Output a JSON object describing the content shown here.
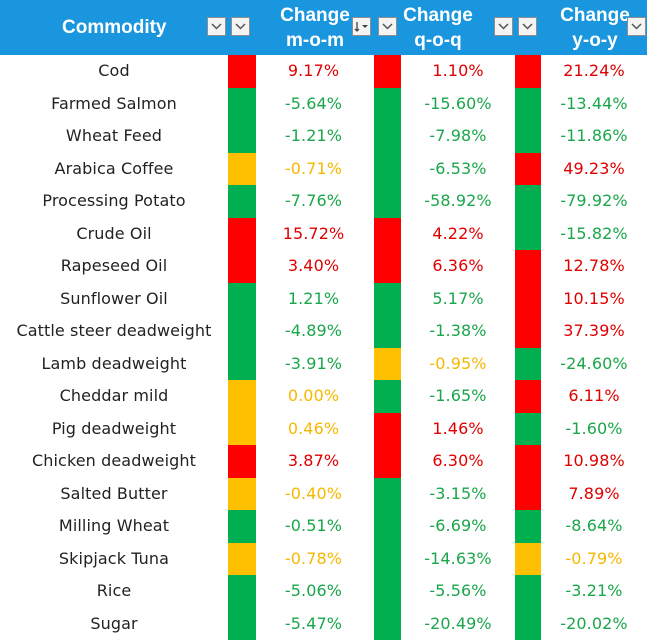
{
  "colors": {
    "header_bg": "#1a96df",
    "header_text": "#ffffff",
    "red": "#fe0000",
    "green": "#00b050",
    "amber": "#fec000",
    "red_text": "#e00000",
    "green_text": "#1aa64a",
    "amber_text": "#f5b800",
    "name_text": "#222222"
  },
  "header": {
    "commodity": "Commodity",
    "mom": [
      "Change",
      "m-o-m"
    ],
    "qoq": [
      "Change",
      "q-o-q"
    ],
    "yoy": [
      "Change",
      "y-o-y"
    ]
  },
  "filter_icons": {
    "dropdown": "chevron-down-icon",
    "sorted": "sort-descending-icon"
  },
  "rows": [
    {
      "name": "Cod",
      "mom": "9.17%",
      "mom_status": "red",
      "qoq": "1.10%",
      "qoq_status": "red",
      "yoy": "21.24%",
      "yoy_status": "red"
    },
    {
      "name": "Farmed Salmon",
      "mom": "-5.64%",
      "mom_status": "green",
      "qoq": "-15.60%",
      "qoq_status": "green",
      "yoy": "-13.44%",
      "yoy_status": "green"
    },
    {
      "name": "Wheat Feed",
      "mom": "-1.21%",
      "mom_status": "green",
      "qoq": "-7.98%",
      "qoq_status": "green",
      "yoy": "-11.86%",
      "yoy_status": "green"
    },
    {
      "name": "Arabica Coffee",
      "mom": "-0.71%",
      "mom_status": "amber",
      "qoq": "-6.53%",
      "qoq_status": "green",
      "yoy": "49.23%",
      "yoy_status": "red"
    },
    {
      "name": "Processing Potato",
      "mom": "-7.76%",
      "mom_status": "green",
      "qoq": "-58.92%",
      "qoq_status": "green",
      "yoy": "-79.92%",
      "yoy_status": "green"
    },
    {
      "name": "Crude Oil",
      "mom": "15.72%",
      "mom_status": "red",
      "qoq": "4.22%",
      "qoq_status": "red",
      "yoy": "-15.82%",
      "yoy_status": "green"
    },
    {
      "name": "Rapeseed Oil",
      "mom": "3.40%",
      "mom_status": "red",
      "qoq": "6.36%",
      "qoq_status": "red",
      "yoy": "12.78%",
      "yoy_status": "red"
    },
    {
      "name": "Sunflower Oil",
      "mom": "1.21%",
      "mom_status": "green",
      "qoq": "5.17%",
      "qoq_status": "green",
      "yoy": "10.15%",
      "yoy_status": "red"
    },
    {
      "name": "Cattle steer deadweight",
      "mom": "-4.89%",
      "mom_status": "green",
      "qoq": "-1.38%",
      "qoq_status": "green",
      "yoy": "37.39%",
      "yoy_status": "red"
    },
    {
      "name": "Lamb deadweight",
      "mom": "-3.91%",
      "mom_status": "green",
      "qoq": "-0.95%",
      "qoq_status": "amber",
      "yoy": "-24.60%",
      "yoy_status": "green"
    },
    {
      "name": "Cheddar mild",
      "mom": "0.00%",
      "mom_status": "amber",
      "qoq": "-1.65%",
      "qoq_status": "green",
      "yoy": "6.11%",
      "yoy_status": "red"
    },
    {
      "name": "Pig deadweight",
      "mom": "0.46%",
      "mom_status": "amber",
      "qoq": "1.46%",
      "qoq_status": "red",
      "yoy": "-1.60%",
      "yoy_status": "green"
    },
    {
      "name": "Chicken deadweight",
      "mom": "3.87%",
      "mom_status": "red",
      "qoq": "6.30%",
      "qoq_status": "red",
      "yoy": "10.98%",
      "yoy_status": "red"
    },
    {
      "name": "Salted Butter",
      "mom": "-0.40%",
      "mom_status": "amber",
      "qoq": "-3.15%",
      "qoq_status": "green",
      "yoy": "7.89%",
      "yoy_status": "red"
    },
    {
      "name": "Milling Wheat",
      "mom": "-0.51%",
      "mom_status": "green",
      "qoq": "-6.69%",
      "qoq_status": "green",
      "yoy": "-8.64%",
      "yoy_status": "green"
    },
    {
      "name": "Skipjack Tuna",
      "mom": "-0.78%",
      "mom_status": "amber",
      "qoq": "-14.63%",
      "qoq_status": "green",
      "yoy": "-0.79%",
      "yoy_status": "amber"
    },
    {
      "name": "Rice",
      "mom": "-5.06%",
      "mom_status": "green",
      "qoq": "-5.56%",
      "qoq_status": "green",
      "yoy": "-3.21%",
      "yoy_status": "green"
    },
    {
      "name": "Sugar",
      "mom": "-5.47%",
      "mom_status": "green",
      "qoq": "-20.49%",
      "qoq_status": "green",
      "yoy": "-20.02%",
      "yoy_status": "green"
    }
  ]
}
